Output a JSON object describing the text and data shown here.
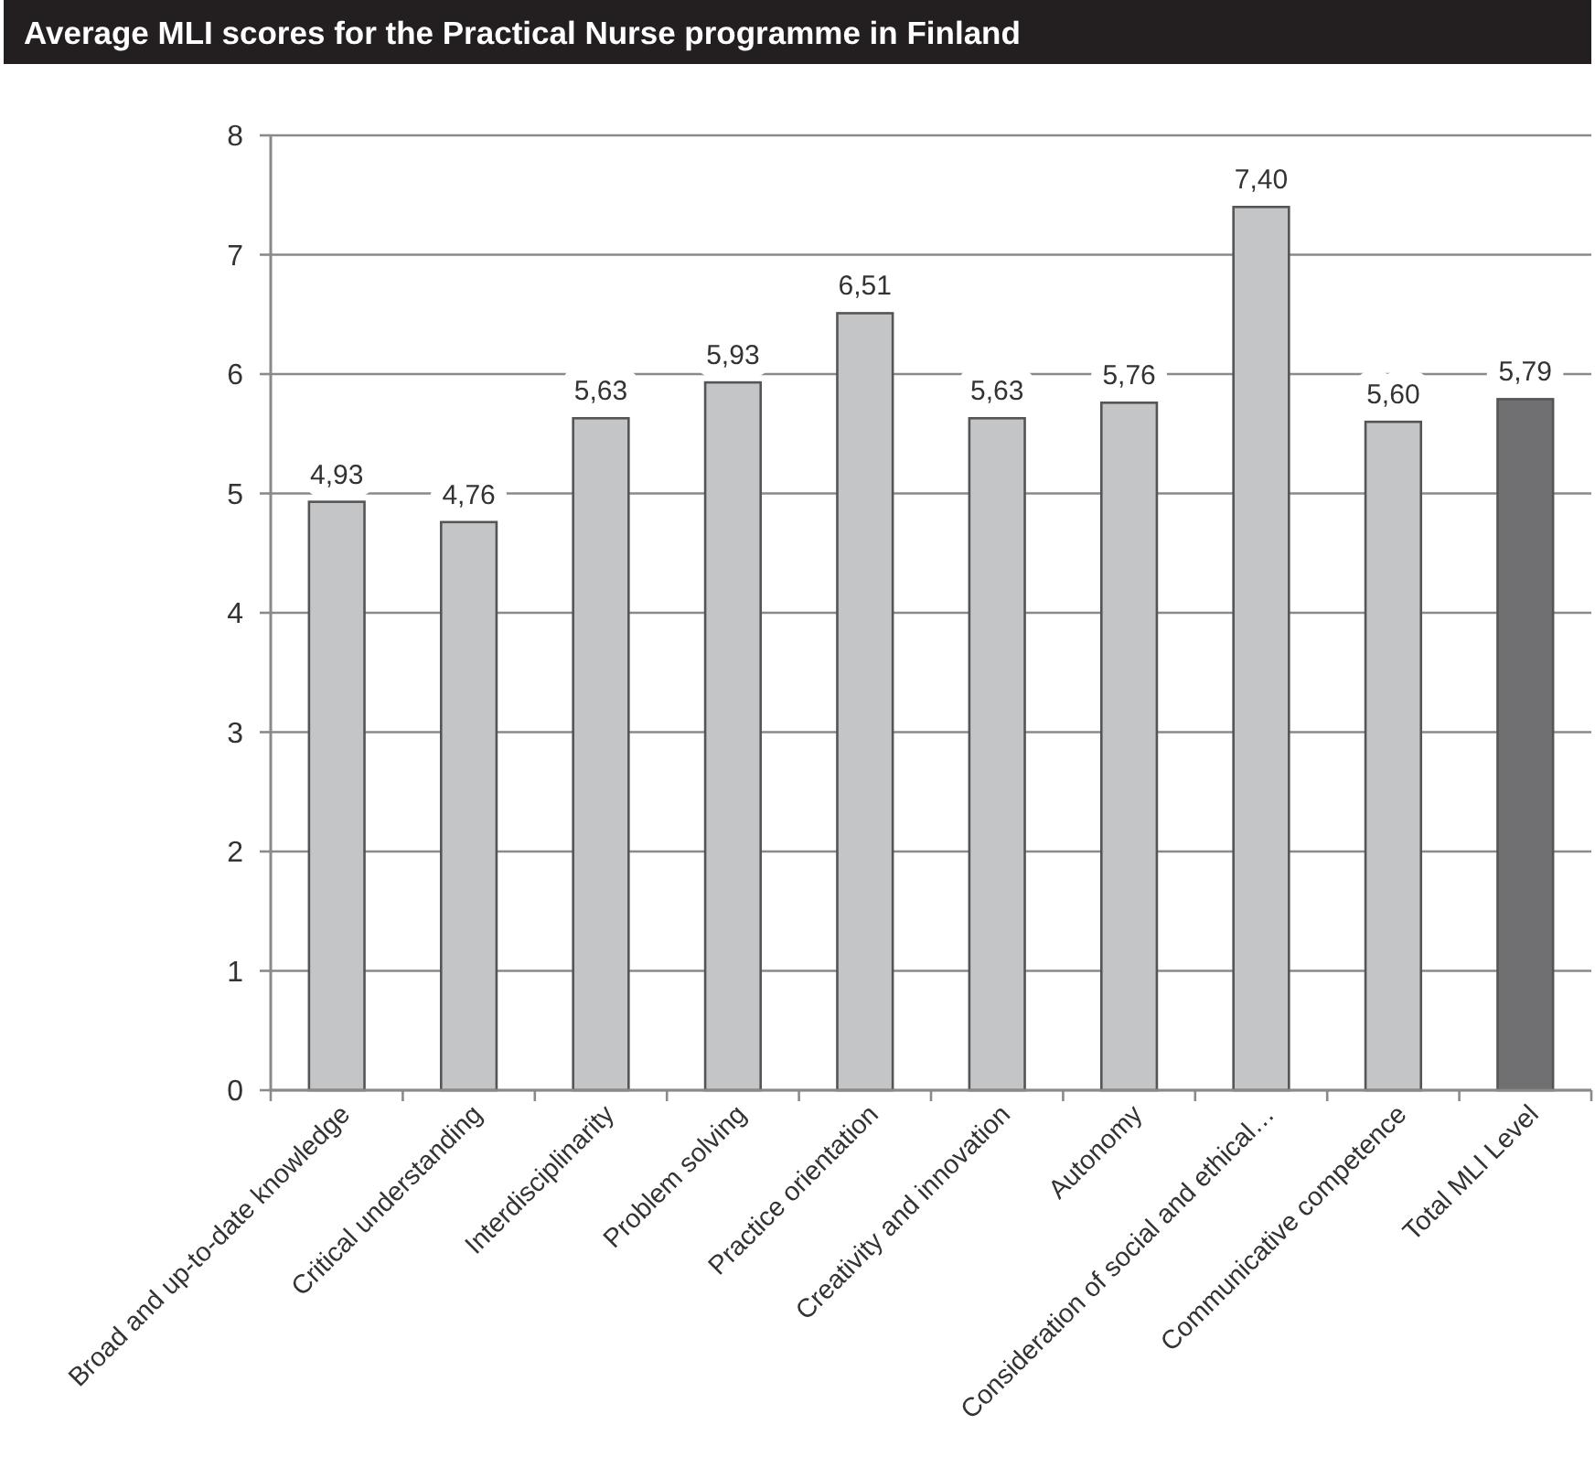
{
  "chart_data": {
    "type": "bar",
    "title": "Average MLI scores for the Practical Nurse programme in Finland",
    "categories": [
      "Broad and up-to-date knowledge",
      "Critical understanding",
      "Interdisciplinarity",
      "Problem solving",
      "Practice orientation",
      "Creativity and innovation",
      "Autonomy",
      "Consideration of social and ethical…",
      "Communicative competence",
      "Total MLI Level"
    ],
    "values": [
      4.93,
      4.76,
      5.63,
      5.93,
      6.51,
      5.63,
      5.76,
      7.4,
      5.6,
      5.79
    ],
    "colors": [
      "#c4c5c7",
      "#c4c5c7",
      "#c4c5c7",
      "#c4c5c7",
      "#c4c5c7",
      "#c4c5c7",
      "#c4c5c7",
      "#c4c5c7",
      "#c4c5c7",
      "#707073"
    ],
    "value_labels": [
      "4,93",
      "4,76",
      "5,63",
      "5,93",
      "6,51",
      "5,63",
      "5,76",
      "7,40",
      "5,60",
      "5,79"
    ],
    "ylim": [
      0,
      8
    ],
    "yticks": [
      0,
      1,
      2,
      3,
      4,
      5,
      6,
      7,
      8
    ],
    "grid": "y"
  }
}
